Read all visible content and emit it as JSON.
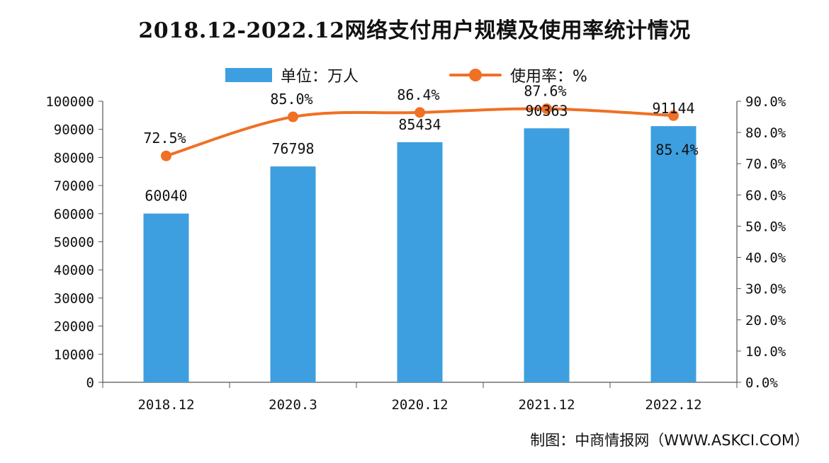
{
  "chart_data": {
    "type": "bar",
    "title": "2018.12-2022.12网络支付用户规模及使用率统计情况",
    "categories": [
      "2018.12",
      "2020.3",
      "2020.12",
      "2021.12",
      "2022.12"
    ],
    "series": [
      {
        "name": "单位：万人",
        "type": "bar",
        "axis": "left",
        "color": "#3d9fe0",
        "values": [
          60040,
          76798,
          85434,
          90363,
          91144
        ],
        "labels": [
          "60040",
          "76798",
          "85434",
          "90363",
          "91144"
        ]
      },
      {
        "name": "使用率：%",
        "type": "line",
        "axis": "right",
        "color": "#f07024",
        "values": [
          72.5,
          85.0,
          86.4,
          87.6,
          85.4
        ],
        "labels": [
          "72.5%",
          "85.0%",
          "86.4%",
          "87.6%",
          "85.4%"
        ]
      }
    ],
    "y_left": {
      "lim": [
        0,
        100000
      ],
      "ticks": [
        "0",
        "10000",
        "20000",
        "30000",
        "40000",
        "50000",
        "60000",
        "70000",
        "80000",
        "90000",
        "100000"
      ]
    },
    "y_right": {
      "lim": [
        0,
        90
      ],
      "ticks": [
        "0.0%",
        "10.0%",
        "20.0%",
        "30.0%",
        "40.0%",
        "50.0%",
        "60.0%",
        "70.0%",
        "80.0%",
        "90.0%"
      ]
    },
    "grid": false,
    "legend": "top-center"
  },
  "footer": {
    "credit": "制图：中商情报网（WWW.ASKCI.COM）"
  }
}
